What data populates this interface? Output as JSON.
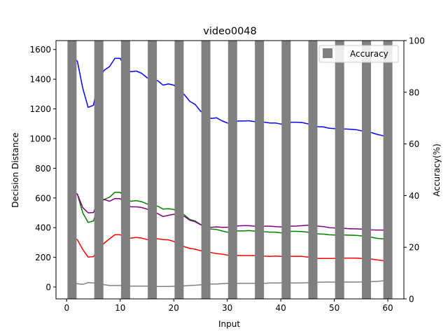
{
  "chart_data": {
    "type": "line",
    "title": "video0048",
    "xlabel": "Input",
    "ylabel": "Decision Distance",
    "y2label": "Accuracy(%)",
    "xlim": [
      -2,
      63
    ],
    "ylim": [
      -80,
      1660
    ],
    "y2lim": [
      0,
      100
    ],
    "xticks": [
      0,
      10,
      20,
      30,
      40,
      50,
      60
    ],
    "yticks": [
      0,
      200,
      400,
      600,
      800,
      1000,
      1200,
      1400,
      1600
    ],
    "y2ticks": [
      0,
      20,
      40,
      60,
      80,
      100
    ],
    "legend": {
      "position": "top-right",
      "entries": [
        "Accuracy"
      ]
    },
    "grid": false,
    "accuracy": {
      "name": "Accuracy",
      "color": "#808080",
      "x": [
        1,
        6,
        11,
        16,
        21,
        26,
        31,
        36,
        41,
        46,
        51,
        56,
        60
      ],
      "values": [
        100,
        100,
        100,
        100,
        100,
        100,
        100,
        100,
        100,
        100,
        100,
        100,
        100
      ]
    },
    "x": [
      1,
      2,
      3,
      4,
      5,
      6,
      7,
      8,
      9,
      10,
      11,
      12,
      13,
      14,
      15,
      16,
      17,
      18,
      19,
      20,
      21,
      22,
      23,
      24,
      25,
      26,
      27,
      28,
      29,
      30,
      31,
      32,
      33,
      34,
      35,
      36,
      37,
      38,
      39,
      40,
      41,
      42,
      43,
      44,
      45,
      46,
      47,
      48,
      49,
      50,
      51,
      52,
      53,
      54,
      55,
      56,
      57,
      58,
      59,
      60
    ],
    "series": [
      {
        "color": "#0000ff",
        "values": [
          1555,
          1520,
          1340,
          1210,
          1225,
          1400,
          1460,
          1485,
          1540,
          1540,
          1470,
          1450,
          1455,
          1440,
          1410,
          1390,
          1390,
          1360,
          1368,
          1360,
          1330,
          1295,
          1250,
          1230,
          1185,
          1160,
          1135,
          1140,
          1120,
          1105,
          1103,
          1118,
          1118,
          1120,
          1115,
          1117,
          1110,
          1105,
          1105,
          1098,
          1100,
          1110,
          1110,
          1108,
          1100,
          1090,
          1080,
          1078,
          1070,
          1067,
          1065,
          1065,
          1063,
          1060,
          1053,
          1042,
          1040,
          1028,
          1020,
          1008
        ]
      },
      {
        "color": "#008000",
        "values": [
          650,
          625,
          500,
          435,
          445,
          560,
          590,
          605,
          638,
          638,
          592,
          578,
          582,
          575,
          560,
          545,
          545,
          525,
          528,
          522,
          505,
          485,
          455,
          445,
          422,
          400,
          390,
          388,
          378,
          370,
          368,
          378,
          378,
          380,
          377,
          378,
          372,
          370,
          370,
          365,
          368,
          375,
          375,
          373,
          370,
          365,
          358,
          356,
          352,
          350,
          350,
          350,
          349,
          348,
          345,
          338,
          335,
          328,
          325,
          318
        ]
      },
      {
        "color": "#800080",
        "values": [
          640,
          625,
          535,
          500,
          502,
          590,
          590,
          578,
          596,
          595,
          560,
          540,
          540,
          536,
          525,
          508,
          495,
          475,
          483,
          490,
          485,
          475,
          450,
          440,
          420,
          407,
          402,
          405,
          402,
          403,
          406,
          412,
          413,
          413,
          410,
          410,
          410,
          410,
          407,
          405,
          405,
          410,
          411,
          413,
          416,
          413,
          410,
          407,
          400,
          398,
          395,
          395,
          392,
          392,
          390,
          387,
          385,
          384,
          384,
          382
        ]
      },
      {
        "color": "#ff0000",
        "values": [
          332,
          318,
          253,
          202,
          205,
          260,
          295,
          325,
          352,
          352,
          330,
          330,
          334,
          330,
          320,
          316,
          325,
          320,
          318,
          307,
          290,
          272,
          260,
          255,
          245,
          238,
          232,
          225,
          222,
          215,
          210,
          213,
          212,
          212,
          212,
          212,
          208,
          206,
          208,
          206,
          206,
          206,
          207,
          206,
          202,
          196,
          192,
          192,
          192,
          193,
          195,
          195,
          195,
          195,
          193,
          192,
          188,
          183,
          178,
          175
        ]
      },
      {
        "color": "#808080",
        "values": [
          22,
          22,
          18,
          30,
          27,
          22,
          16,
          10,
          10,
          10,
          8,
          6,
          6,
          6,
          6,
          4,
          4,
          4,
          4,
          5,
          6,
          8,
          10,
          12,
          15,
          18,
          20,
          20,
          23,
          25,
          25,
          25,
          25,
          25,
          25,
          25,
          25,
          27,
          27,
          27,
          27,
          27,
          27,
          28,
          29,
          30,
          32,
          33,
          33,
          33,
          33,
          33,
          33,
          33,
          34,
          36,
          37,
          38,
          41,
          44
        ]
      }
    ]
  }
}
